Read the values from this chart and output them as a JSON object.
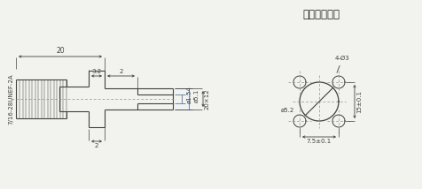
{
  "title": "安装开孔尺寸",
  "thread_label": "7/16-28UNEF-2A",
  "dim_20": "20",
  "dim_3_2": "3.2",
  "dim_2_top": "2",
  "dim_2_bot": "2",
  "dim_phi154": "ø1.54",
  "dim_phi51": "ø5.1",
  "dim_20x12": "20×12",
  "dim_4phi3": "4-Ø3",
  "dim_phi52": "ø5.2",
  "dim_75": "7.5±0.1",
  "dim_15": "15±0.1",
  "bg_color": "#f2f2ee",
  "line_color": "#404040",
  "dim_color": "#404040",
  "font_size": 5.5
}
